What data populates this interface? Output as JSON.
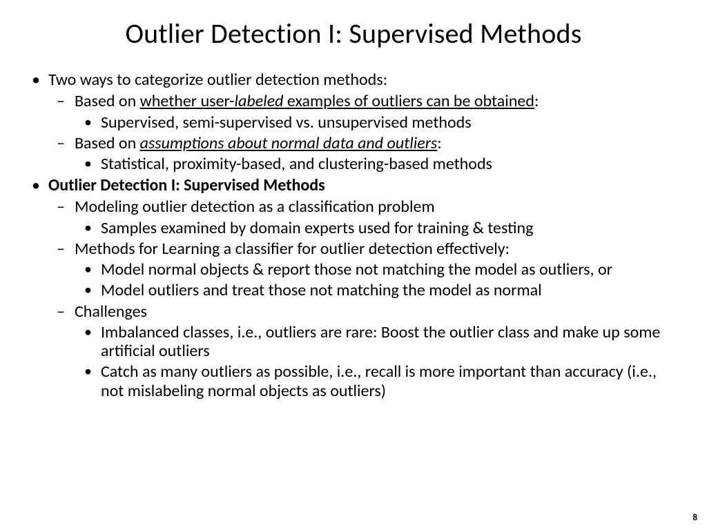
{
  "page_number": "8",
  "title": "Outlier Detection I: Supervised Methods",
  "b1": {
    "main": "Two ways to categorize outlier detection methods:",
    "s1": {
      "pre": "Based on ",
      "u_pre": "whether user-",
      "u_i": "labeled",
      "u_post": " examples of outliers can be obtained",
      "colon": ":",
      "d1": "Supervised, semi-supervised vs. unsupervised methods"
    },
    "s2": {
      "pre": "Based on ",
      "u_i": "assumptions about normal data and outliers",
      "colon": ":",
      "d1": "Statistical, proximity-based, and clustering-based methods"
    }
  },
  "b2": {
    "main": "Outlier Detection I: Supervised Methods",
    "s1": {
      "t": "Modeling outlier detection as a classification problem",
      "d1": "Samples examined by domain experts used for training & testing"
    },
    "s2": {
      "t": "Methods for Learning a classifier for outlier detection effectively:",
      "d1": "Model normal objects & report those not matching the model as outliers, or",
      "d2": "Model outliers and treat those not matching the model as normal"
    },
    "s3": {
      "t": "Challenges",
      "d1": "Imbalanced classes, i.e., outliers are rare: Boost the outlier class and make up some artificial outliers",
      "d2": "Catch as many outliers as possible, i.e., recall is more important than accuracy (i.e., not mislabeling normal objects as outliers)"
    }
  }
}
